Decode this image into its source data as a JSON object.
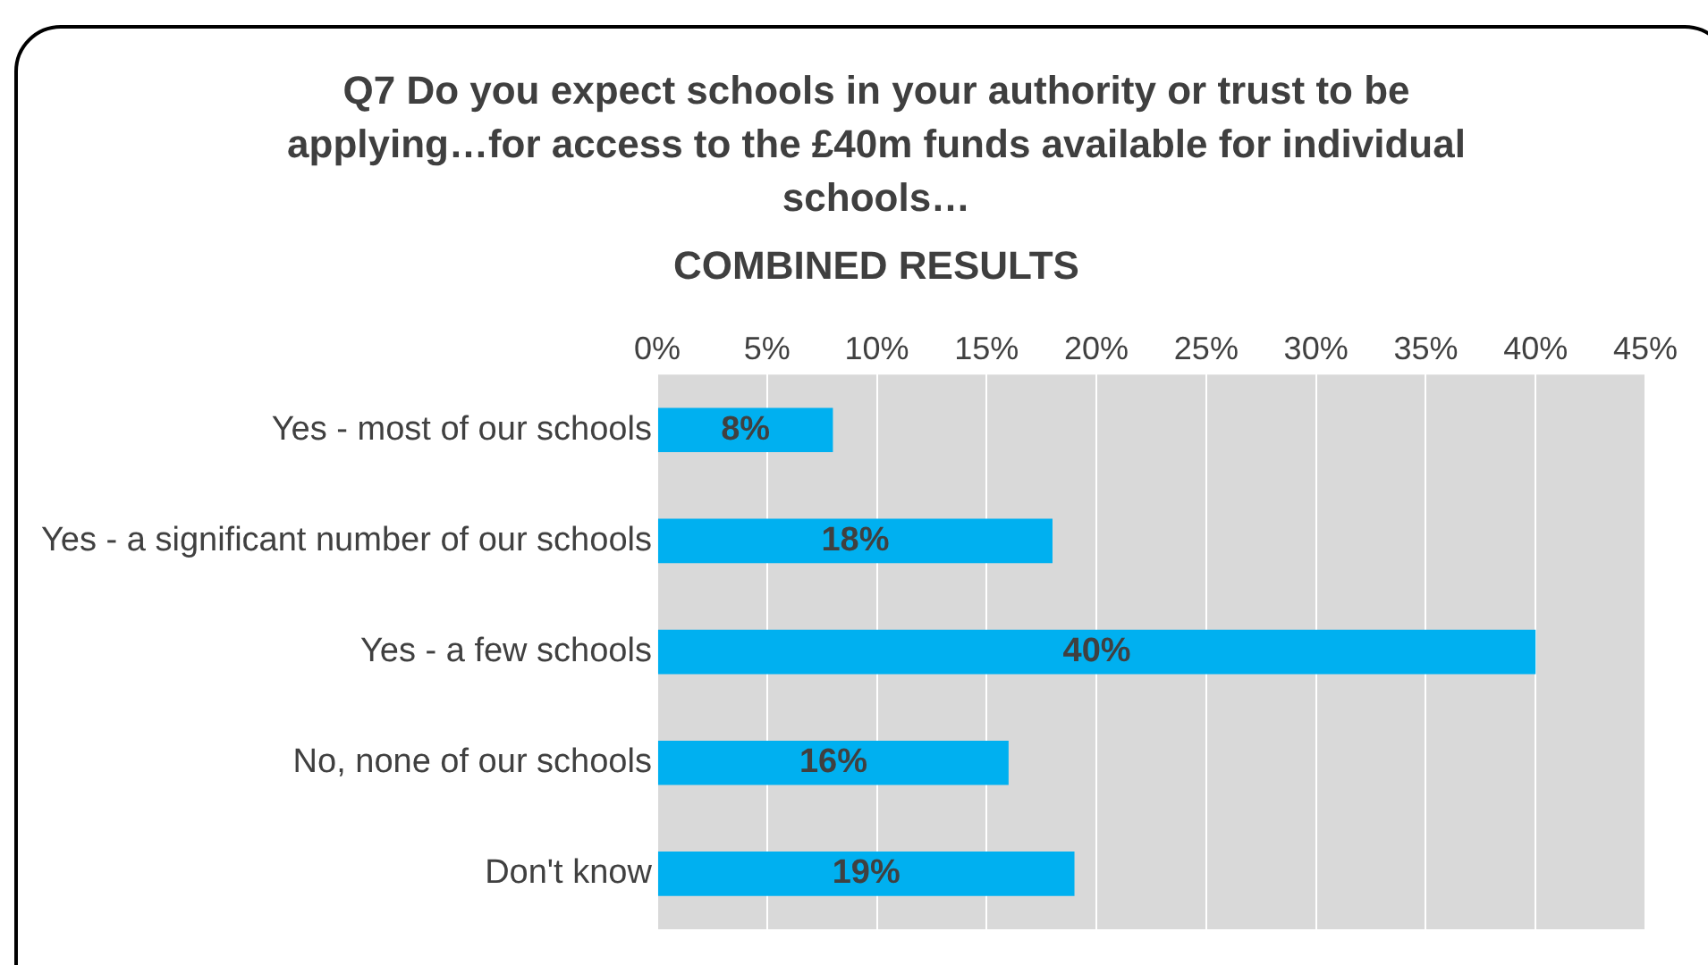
{
  "chart_data": {
    "type": "bar",
    "orientation": "horizontal",
    "title": "Q7 Do you expect schools in your authority or trust to be applying…for access to the £40m funds available for individual schools…",
    "subtitle": "COMBINED RESULTS",
    "categories": [
      "Yes - most of our schools",
      "Yes - a significant number of our schools",
      "Yes - a few schools",
      "No, none of our schools",
      "Don't know"
    ],
    "values": [
      8,
      18,
      40,
      16,
      19
    ],
    "value_labels": [
      "8%",
      "18%",
      "40%",
      "16%",
      "19%"
    ],
    "color": "#00b0f0",
    "xlim": [
      0,
      45
    ],
    "xticks": [
      {
        "value": 0,
        "label": "0%"
      },
      {
        "value": 5,
        "label": "5%"
      },
      {
        "value": 10,
        "label": "10%"
      },
      {
        "value": 15,
        "label": "15%"
      },
      {
        "value": 20,
        "label": "20%"
      },
      {
        "value": 25,
        "label": "25%"
      },
      {
        "value": 30,
        "label": "30%"
      },
      {
        "value": 35,
        "label": "35%"
      },
      {
        "value": 40,
        "label": "40%"
      },
      {
        "value": 45,
        "label": "45%"
      }
    ],
    "grid": "x",
    "legend": false
  }
}
